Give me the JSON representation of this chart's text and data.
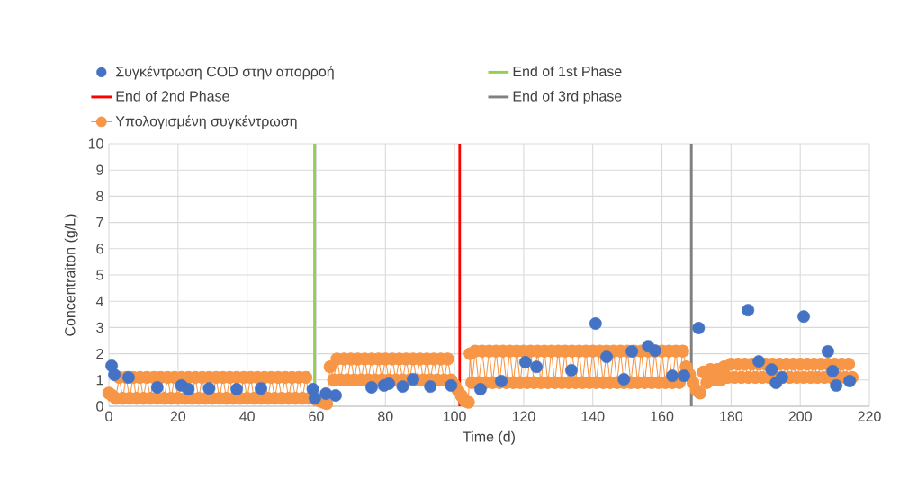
{
  "chart_data": {
    "type": "scatter",
    "xlabel": "Time (d)",
    "ylabel": "Concentraiton (g/L)",
    "xlim": [
      0,
      220
    ],
    "ylim": [
      0,
      10
    ],
    "xticks": [
      0,
      20,
      40,
      60,
      80,
      100,
      120,
      140,
      160,
      180,
      200,
      220
    ],
    "yticks": [
      0,
      1,
      2,
      3,
      4,
      5,
      6,
      7,
      8,
      9,
      10
    ],
    "grid": true,
    "legend": "top",
    "series": [
      {
        "name": "Συγκέντρωση COD στην απορροή",
        "type": "scatter",
        "marker": "circle",
        "color": "#4472c4",
        "x": [
          0.8,
          1.6,
          5.7,
          14,
          21,
          23,
          29,
          37,
          44,
          59,
          59.6,
          62.8,
          65.6,
          76,
          79.6,
          81,
          85,
          88,
          93,
          99,
          107.5,
          113.5,
          120.5,
          123.7,
          133.8,
          140.8,
          144,
          149,
          151.3,
          156,
          158,
          163,
          166.4,
          170.6,
          184.9,
          188,
          191.7,
          193,
          194.7,
          201,
          208,
          209.4,
          210.4,
          214.3
        ],
        "values": [
          1.54,
          1.2,
          1.1,
          0.72,
          0.79,
          0.65,
          0.68,
          0.65,
          0.68,
          0.65,
          0.31,
          0.48,
          0.41,
          0.72,
          0.79,
          0.86,
          0.75,
          1.03,
          0.75,
          0.79,
          0.65,
          0.96,
          1.68,
          1.5,
          1.37,
          3.15,
          1.88,
          1.03,
          2.09,
          2.29,
          2.12,
          1.16,
          1.16,
          2.98,
          3.66,
          1.71,
          1.4,
          0.89,
          1.1,
          3.42,
          2.09,
          1.34,
          0.79,
          0.96
        ]
      },
      {
        "name": "Υπολογισμένη συγκέντρωση",
        "type": "line",
        "marker": "circle",
        "line_style": "solid",
        "color": "#f79646",
        "x": [
          0,
          1,
          2,
          3,
          4,
          5,
          6,
          7,
          8,
          9,
          10,
          11,
          12,
          13,
          14,
          15,
          16,
          17,
          18,
          19,
          20,
          21,
          22,
          23,
          24,
          25,
          26,
          27,
          28,
          29,
          30,
          31,
          32,
          33,
          34,
          35,
          36,
          37,
          38,
          39,
          40,
          41,
          42,
          43,
          44,
          45,
          46,
          47,
          48,
          49,
          50,
          51,
          52,
          53,
          54,
          55,
          56,
          57,
          58,
          59,
          60,
          61,
          62,
          63,
          64,
          65,
          66,
          67,
          68,
          69,
          70,
          71,
          72,
          73,
          74,
          75,
          76,
          77,
          78,
          79,
          80,
          81,
          82,
          83,
          84,
          85,
          86,
          87,
          88,
          89,
          90,
          91,
          92,
          93,
          94,
          95,
          96,
          97,
          98,
          99,
          100,
          101,
          102,
          103,
          104,
          104.5,
          105,
          106,
          107,
          108,
          109,
          110,
          111,
          112,
          113,
          114,
          115,
          116,
          117,
          118,
          119,
          120,
          121,
          122,
          123,
          124,
          125,
          126,
          127,
          128,
          129,
          130,
          131,
          132,
          133,
          134,
          135,
          136,
          137,
          138,
          139,
          140,
          141,
          142,
          143,
          144,
          145,
          146,
          147,
          148,
          149,
          150,
          151,
          152,
          153,
          154,
          155,
          156,
          157,
          158,
          159,
          160,
          161,
          162,
          163,
          164,
          165,
          166,
          167,
          168,
          169,
          170,
          171,
          172,
          173,
          174,
          175,
          176,
          177,
          178,
          179,
          180,
          181,
          182,
          183,
          184,
          185,
          186,
          187,
          188,
          189,
          190,
          191,
          192,
          193,
          194,
          195,
          196,
          197,
          198,
          199,
          200,
          201,
          202,
          203,
          204,
          205,
          206,
          207,
          208,
          209,
          210,
          211,
          212,
          213,
          214,
          215
        ],
        "values": [
          0.5,
          0.4,
          0.3,
          1.1,
          0.3,
          1.1,
          0.3,
          1.1,
          0.3,
          1.1,
          0.3,
          1.1,
          0.3,
          1.1,
          0.3,
          1.1,
          0.3,
          1.1,
          0.3,
          1.1,
          0.3,
          1.1,
          0.3,
          1.1,
          0.3,
          1.1,
          0.3,
          1.1,
          0.3,
          1.1,
          0.3,
          1.1,
          0.3,
          1.1,
          0.3,
          1.1,
          0.3,
          1.1,
          0.3,
          1.1,
          0.3,
          1.1,
          0.3,
          1.1,
          0.3,
          1.1,
          0.3,
          1.1,
          0.3,
          1.1,
          0.3,
          1.1,
          0.3,
          1.1,
          0.3,
          1.1,
          0.3,
          1.1,
          0.3,
          0.3,
          0.25,
          0.2,
          0.15,
          0.1,
          1.5,
          1.0,
          1.8,
          1.0,
          1.8,
          1.0,
          1.8,
          1.0,
          1.8,
          1.0,
          1.8,
          1.0,
          1.8,
          1.0,
          1.8,
          1.0,
          1.8,
          1.0,
          1.8,
          1.0,
          1.8,
          1.0,
          1.8,
          1.0,
          1.8,
          1.0,
          1.8,
          1.0,
          1.8,
          1.0,
          1.8,
          1.0,
          1.8,
          1.0,
          1.8,
          1.0,
          0.8,
          0.6,
          0.4,
          0.2,
          0.15,
          2.0,
          0.9,
          2.1,
          0.9,
          2.1,
          0.9,
          2.1,
          0.9,
          2.1,
          0.9,
          2.1,
          0.9,
          2.1,
          0.9,
          2.1,
          0.9,
          2.1,
          0.9,
          2.1,
          0.9,
          2.1,
          0.9,
          2.1,
          0.9,
          2.1,
          0.9,
          2.1,
          0.9,
          2.1,
          0.9,
          2.1,
          0.9,
          2.1,
          0.9,
          2.1,
          0.9,
          2.1,
          0.9,
          2.1,
          0.9,
          2.1,
          0.9,
          2.1,
          0.9,
          2.1,
          0.9,
          2.1,
          0.9,
          2.1,
          0.9,
          2.1,
          0.9,
          2.1,
          0.9,
          2.1,
          0.9,
          2.1,
          0.9,
          2.1,
          0.9,
          2.1,
          0.9,
          2.1,
          1.5,
          1.2,
          0.9,
          0.6,
          0.5,
          1.3,
          0.9,
          1.4,
          1.0,
          1.4,
          1.0,
          1.5,
          1.1,
          1.6,
          1.1,
          1.6,
          1.1,
          1.6,
          1.1,
          1.6,
          1.1,
          1.6,
          1.1,
          1.6,
          1.1,
          1.6,
          1.1,
          1.6,
          1.1,
          1.6,
          1.1,
          1.6,
          1.1,
          1.6,
          1.1,
          1.6,
          1.1,
          1.6,
          1.1,
          1.6,
          1.1,
          1.6,
          1.1,
          1.6,
          1.1,
          1.6,
          1.1,
          1.6,
          1.1
        ]
      }
    ],
    "ref_lines": [
      {
        "axis": "x",
        "value": 59.5,
        "label": "End of 1st Phase",
        "color": "#92d050"
      },
      {
        "axis": "x",
        "value": 101.5,
        "label": "End of 2nd Phase",
        "color": "#ff0000"
      },
      {
        "axis": "x",
        "value": 168.5,
        "label": "End of 3rd phase",
        "color": "#808080"
      }
    ]
  }
}
